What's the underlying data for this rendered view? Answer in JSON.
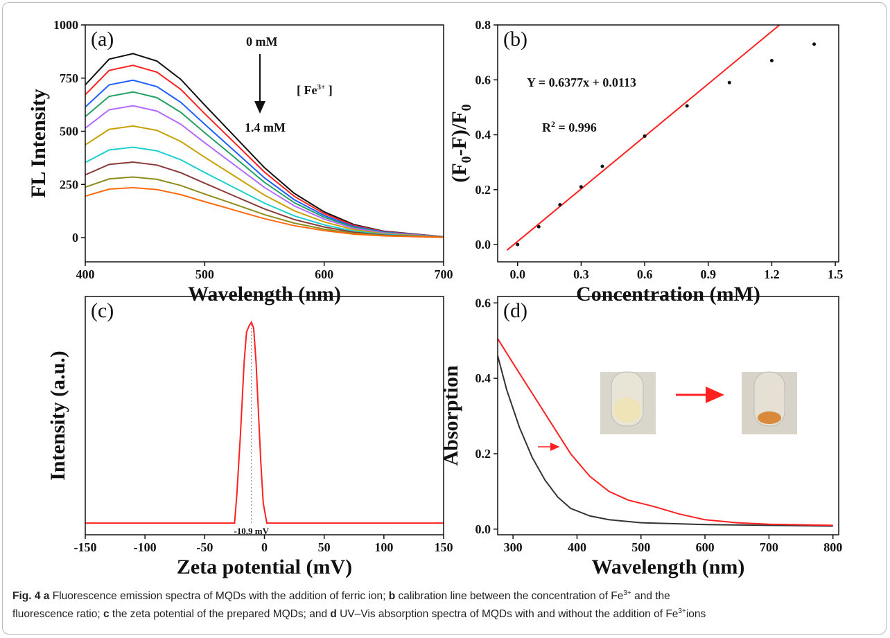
{
  "chart_data": [
    {
      "type": "line",
      "panel_label": "(a)",
      "xlabel": "Wavelength (nm)",
      "ylabel": "FL Intensity",
      "x": [
        400,
        420,
        440,
        460,
        480,
        500,
        525,
        550,
        575,
        600,
        625,
        650,
        700
      ],
      "xlim": [
        400,
        700
      ],
      "xticks": [
        400,
        500,
        600,
        700
      ],
      "ylim": [
        -114,
        1000
      ],
      "yticks": [
        0,
        250,
        500,
        750,
        1000
      ],
      "series": [
        {
          "color": "#111111",
          "values": [
            718,
            839,
            865,
            830,
            744,
            623,
            476,
            329,
            208,
            121,
            61,
            30,
            4
          ]
        },
        {
          "color": "#ff2020",
          "values": [
            672,
            786,
            810,
            778,
            697,
            583,
            446,
            308,
            194,
            113,
            57,
            28,
            4
          ]
        },
        {
          "color": "#1f5fff",
          "values": [
            614,
            718,
            740,
            710,
            636,
            533,
            407,
            281,
            178,
            104,
            52,
            26,
            4
          ]
        },
        {
          "color": "#21a060",
          "values": [
            569,
            664,
            685,
            658,
            589,
            493,
            377,
            260,
            164,
            96,
            48,
            24,
            3
          ]
        },
        {
          "color": "#b36bff",
          "values": [
            515,
            601,
            620,
            595,
            533,
            446,
            341,
            236,
            149,
            87,
            43,
            22,
            3
          ]
        },
        {
          "color": "#c8a000",
          "values": [
            436,
            509,
            525,
            504,
            452,
            378,
            289,
            200,
            126,
            74,
            37,
            18,
            3
          ]
        },
        {
          "color": "#1ccfcf",
          "values": [
            353,
            412,
            425,
            408,
            366,
            306,
            234,
            162,
            102,
            60,
            30,
            15,
            2
          ]
        },
        {
          "color": "#8b3a3a",
          "values": [
            295,
            344,
            355,
            341,
            305,
            256,
            195,
            135,
            85,
            50,
            25,
            12,
            2
          ]
        },
        {
          "color": "#8c8c1a",
          "values": [
            237,
            276,
            285,
            274,
            245,
            205,
            157,
            108,
            68,
            40,
            20,
            10,
            1
          ]
        },
        {
          "color": "#ff6a10",
          "values": [
            195,
            228,
            235,
            226,
            202,
            169,
            129,
            89,
            56,
            33,
            16,
            8,
            1
          ]
        }
      ],
      "annotations": {
        "start": "0 mM",
        "end": "1.4 mM",
        "ion": [
          "[ Fe",
          "3+",
          " ]"
        ]
      }
    },
    {
      "type": "scatter",
      "panel_label": "(b)",
      "xlabel": "Concentration (mM)",
      "ylabel": [
        "(F",
        "0",
        "-F)/F",
        "0"
      ],
      "x": [
        0,
        0.1,
        0.2,
        0.3,
        0.4,
        0.6,
        0.8,
        1.0,
        1.2,
        1.4
      ],
      "values": [
        0,
        0.065,
        0.145,
        0.21,
        0.285,
        0.395,
        0.505,
        0.59,
        0.67,
        0.73
      ],
      "color": "#111111",
      "fit": {
        "slope": 0.6377,
        "intercept": 0.0113,
        "x_range": [
          -0.05,
          1.24
        ],
        "color": "#ff2020"
      },
      "equation": "Y = 0.6377x + 0.0113",
      "r2": [
        "R",
        "2",
        " = 0.996"
      ],
      "xlim": [
        -0.094,
        1.516
      ],
      "xticks": [
        {
          "value": 0,
          "label": "0.0"
        },
        0.3,
        0.6,
        0.9,
        1.2,
        1.5
      ],
      "ylim": [
        -0.063,
        0.8
      ],
      "yticks": [
        {
          "value": 0,
          "label": "0.0"
        },
        0.2,
        0.4,
        0.6,
        0.8
      ]
    },
    {
      "type": "line",
      "panel_label": "(c)",
      "xlabel": "Zeta potential (mV)",
      "ylabel": "Intensity (a.u.)",
      "x": [
        -150,
        -25,
        -23,
        -20,
        -17,
        -15,
        -13,
        -10.9,
        -9,
        -7,
        -5,
        -3,
        -1,
        2,
        150
      ],
      "series": [
        {
          "color": "#ff2020",
          "values": [
            0,
            0,
            0.15,
            0.45,
            0.8,
            0.95,
            0.98,
            1.0,
            0.97,
            0.8,
            0.55,
            0.3,
            0.1,
            0,
            0
          ]
        }
      ],
      "xlim": [
        -150,
        150
      ],
      "xticks": [
        -150,
        -100,
        -50,
        0,
        50,
        100,
        150
      ],
      "ylim": [
        -0.058,
        1.128
      ],
      "peak": {
        "x": -10.9,
        "label": "-10.9 mV"
      }
    },
    {
      "type": "line",
      "panel_label": "(d)",
      "xlabel": "Wavelength (nm)",
      "ylabel": "Absorption",
      "series": [
        {
          "color": "#333333",
          "x": [
            276,
            290,
            310,
            330,
            350,
            370,
            390,
            420,
            450,
            500,
            600,
            700,
            800
          ],
          "values": [
            0.46,
            0.37,
            0.27,
            0.19,
            0.13,
            0.085,
            0.055,
            0.035,
            0.025,
            0.017,
            0.012,
            0.01,
            0.008
          ]
        },
        {
          "color": "#ff2020",
          "x": [
            276,
            300,
            330,
            360,
            390,
            420,
            450,
            480,
            520,
            560,
            600,
            650,
            700,
            800
          ],
          "values": [
            0.505,
            0.44,
            0.36,
            0.28,
            0.2,
            0.14,
            0.1,
            0.077,
            0.06,
            0.04,
            0.025,
            0.017,
            0.013,
            0.01
          ]
        }
      ],
      "xlim": [
        276,
        809
      ],
      "xticks": [
        300,
        400,
        500,
        600,
        700,
        800
      ],
      "ylim": [
        -0.015,
        0.617
      ],
      "yticks": [
        {
          "value": 0,
          "label": "0.0"
        },
        0.2,
        0.4,
        0.6
      ]
    }
  ],
  "caption": [
    "Fig. 4",
    "a",
    " Fluorescence emission spectra of MQDs with the addition of ferric ion; ",
    "b",
    " calibration line between the concentration of Fe",
    "3+",
    " and the",
    "fluorescence ratio; ",
    "c",
    " the zeta potential of the prepared MQDs; and ",
    "d",
    " UV–Vis absorption spectra of MQDs with and without the addition of Fe",
    "3+",
    "ions"
  ]
}
